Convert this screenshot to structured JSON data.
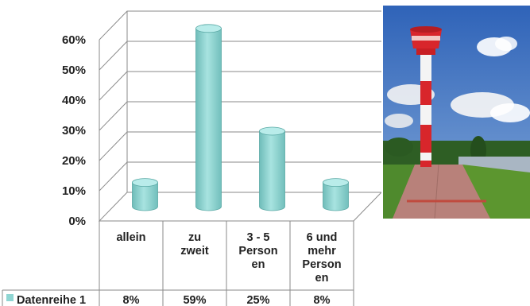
{
  "chart_data": {
    "type": "bar",
    "style": "3d-cylinder",
    "categories": [
      "allein",
      "zu zweit",
      "3 - 5 Personen",
      "6 und mehr Personen"
    ],
    "category_lines": [
      [
        "allein"
      ],
      [
        "zu",
        "zweit"
      ],
      [
        "3 - 5",
        "Person",
        "en"
      ],
      [
        "6 und",
        "mehr",
        "Person",
        "en"
      ]
    ],
    "series": [
      {
        "name": "Datenreihe 1",
        "values": [
          0.08,
          0.59,
          0.25,
          0.08
        ],
        "color": "#8fd6d3"
      }
    ],
    "value_labels": [
      "8%",
      "59%",
      "25%",
      "8%"
    ],
    "yticks": [
      "0%",
      "10%",
      "20%",
      "30%",
      "40%",
      "50%",
      "60%"
    ],
    "ylim": [
      0,
      0.6
    ],
    "grid": true,
    "legend": "data-table"
  },
  "photo": {
    "subject": "lighthouse",
    "colors": {
      "sky": "#3a6fc4",
      "tower_red": "#d8262b",
      "grass": "#4f8a2d"
    }
  }
}
